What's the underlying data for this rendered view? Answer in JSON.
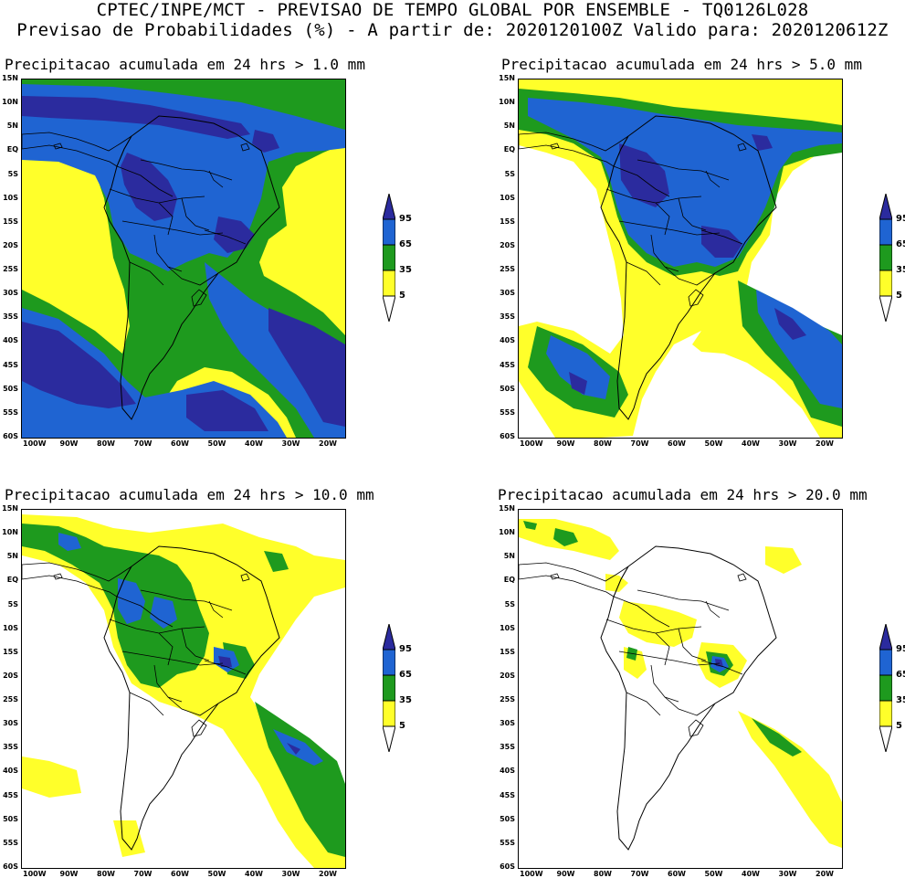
{
  "header": {
    "line1": "CPTEC/INPE/MCT - PREVISAO DE TEMPO GLOBAL POR ENSEMBLE - TQ0126L028",
    "line2": "Previsao de Probabilidades (%) -  A partir de: 2020120100Z  Valido para: 2020120612Z"
  },
  "lat_labels": [
    "15N",
    "10N",
    "5N",
    "EQ",
    "5S",
    "10S",
    "15S",
    "20S",
    "25S",
    "30S",
    "35S",
    "40S",
    "45S",
    "50S",
    "55S",
    "60S"
  ],
  "lon_labels": [
    "100W",
    "90W",
    "80W",
    "70W",
    "60W",
    "50W",
    "40W",
    "30W",
    "20W"
  ],
  "legend": {
    "levels": [
      "95",
      "65",
      "35",
      "5"
    ],
    "colors": {
      "c95": "#2b2b9e",
      "c65": "#1f64d2",
      "c35": "#1e9a1e",
      "c5": "#ffff2a"
    }
  },
  "panels": [
    {
      "title": "Precipitacao acumulada em 24 hrs > 1.0 mm"
    },
    {
      "title": "Precipitacao acumulada em 24 hrs > 5.0 mm"
    },
    {
      "title": "Precipitacao acumulada em 24 hrs > 10.0 mm"
    },
    {
      "title": "Precipitacao acumulada em 24 hrs > 20.0 mm"
    }
  ]
}
